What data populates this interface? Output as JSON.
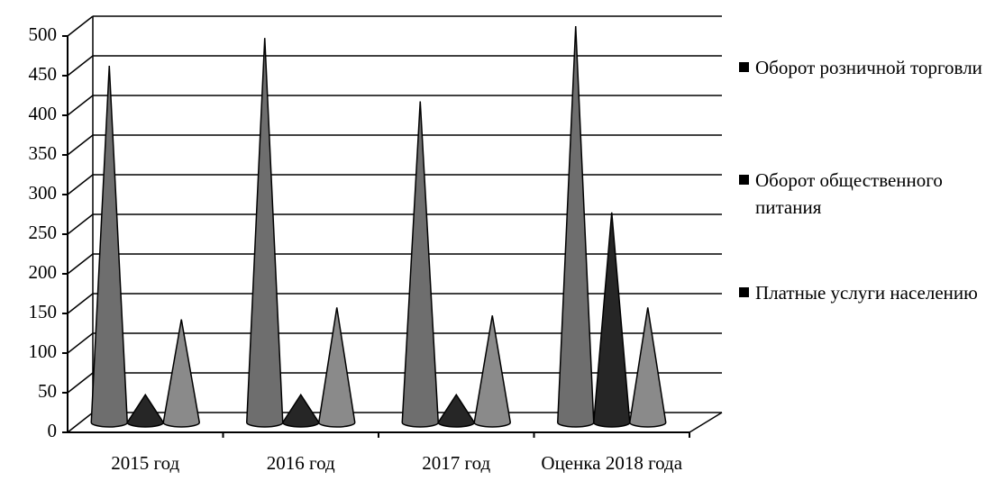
{
  "chart_data": {
    "type": "cone",
    "categories": [
      "2015 год",
      "2016 год",
      "2017 год",
      "Оценка 2018 года"
    ],
    "series": [
      {
        "name": "Оборот розничной торговли",
        "color": "#6e6e6e",
        "values": [
          450,
          485,
          405,
          500
        ]
      },
      {
        "name": "Оборот общественного питания",
        "color": "#262626",
        "values": [
          35,
          35,
          35,
          265
        ]
      },
      {
        "name": "Платные услуги населению",
        "color": "#8a8a8a",
        "values": [
          130,
          145,
          135,
          145
        ]
      }
    ],
    "ylim": [
      0,
      500
    ],
    "yticks": [
      0,
      50,
      100,
      150,
      200,
      250,
      300,
      350,
      400,
      450,
      500
    ],
    "grid": true,
    "legend": "right"
  }
}
